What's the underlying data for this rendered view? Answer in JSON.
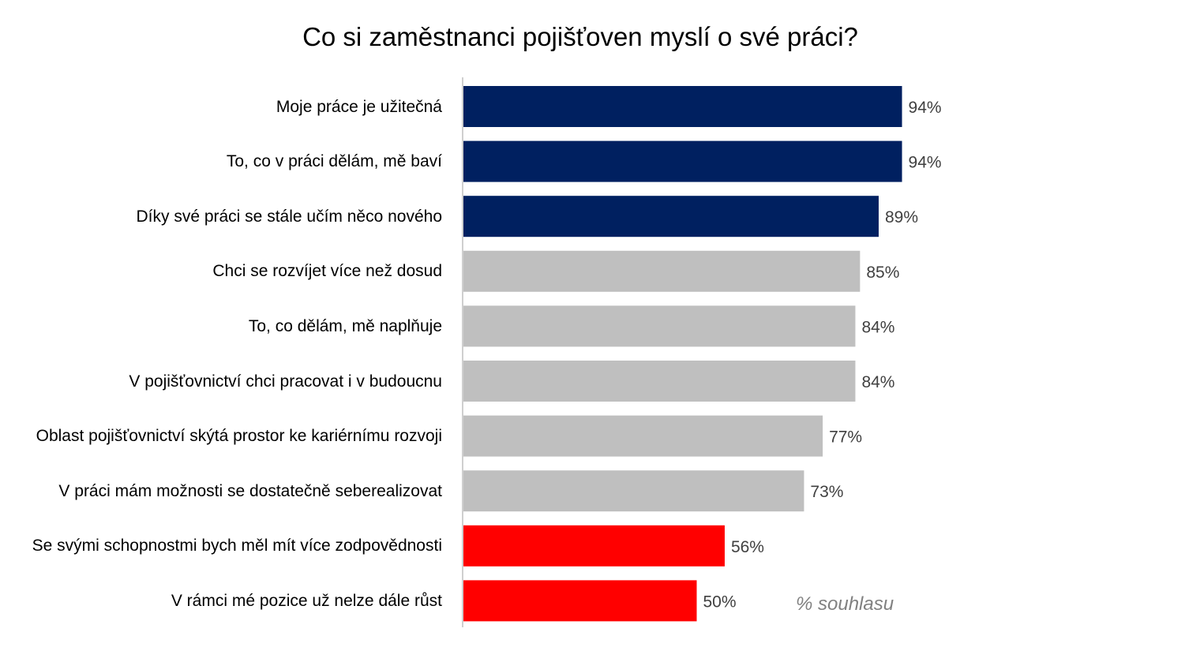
{
  "chart_data": {
    "type": "bar",
    "orientation": "horizontal",
    "title": "Co si zaměstnanci pojišťoven myslí o své práci?",
    "note": "% souhlasu",
    "categories": [
      "Moje práce je užitečná",
      "To, co v práci dělám, mě baví",
      "Díky své práci se stále učím něco nového",
      "Chci se rozvíjet více než dosud",
      "To, co dělám, mě naplňuje",
      "V pojišťovnictví chci pracovat i v budoucnu",
      "Oblast pojišťovnictví skýtá prostor ke kariérnímu rozvoji",
      "V práci mám možnosti se dostatečně seberealizovat",
      "Se svými schopnostmi bych měl mít více zodpovědnosti",
      "V rámci mé pozice už nelze dále růst"
    ],
    "values": [
      94,
      94,
      89,
      85,
      84,
      84,
      77,
      73,
      56,
      50
    ],
    "value_labels": [
      "94%",
      "94%",
      "89%",
      "85%",
      "84%",
      "84%",
      "77%",
      "73%",
      "56%",
      "50%"
    ],
    "bar_colors": [
      "#002060",
      "#002060",
      "#002060",
      "#bfbfbf",
      "#bfbfbf",
      "#bfbfbf",
      "#bfbfbf",
      "#bfbfbf",
      "#ff0000",
      "#ff0000"
    ],
    "xlim": [
      0,
      100
    ],
    "grid": false,
    "legend": "none"
  }
}
